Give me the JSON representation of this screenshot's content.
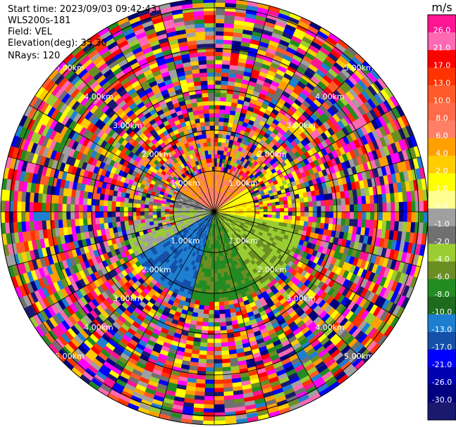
{
  "info": {
    "start_time": "Start time: 2023/09/03 09:42:43",
    "station": "WLS200s-181",
    "field": "Field: VEL",
    "elevation": "Elevation(deg): 35.30",
    "nrays": "NRays: 120"
  },
  "chart_data": {
    "type": "heatmap",
    "projection": "polar-ppi",
    "nrays": 120,
    "range_rings_km": [
      1.0,
      2.0,
      3.0,
      4.0,
      5.0
    ],
    "ring_label_unit": "km",
    "ring_labels": [
      "1.00km",
      "2.00km",
      "3.00km",
      "4.00km",
      "5.00km"
    ],
    "colorbar": {
      "unit": "m/s",
      "ticks": [
        "26.0",
        "21.0",
        "17.0",
        "13.0",
        "10.0",
        "8.0",
        "6.0",
        "4.0",
        "2.0",
        "1.0",
        "0.0",
        "-1.0",
        "-2.0",
        "-4.0",
        "-6.0",
        "-8.0",
        "-10.0",
        "-13.0",
        "-17.0",
        "-21.0",
        "-26.0",
        "-30.0"
      ],
      "colors": [
        "#ff1493",
        "#ff69b4",
        "#ff0000",
        "#ff3300",
        "#ff5a2a",
        "#ff6a4a",
        "#ff8066",
        "#ffa000",
        "#ffcc00",
        "#ffff00",
        "#ffff90",
        "#a0a0a0",
        "#707070",
        "#9acd32",
        "#6b8e23",
        "#228b22",
        "#1e6b1e",
        "#1e7fd0",
        "#1450a8",
        "#0000ff",
        "#0000b0",
        "#000080",
        "#191970"
      ]
    },
    "valid_range_km": 1.0,
    "near_field_pattern": "orange/yellow toward north (positive), green/gray toward south, blue toward southwest",
    "far_field_pattern": "noise (random colors) beyond ~1 km"
  }
}
